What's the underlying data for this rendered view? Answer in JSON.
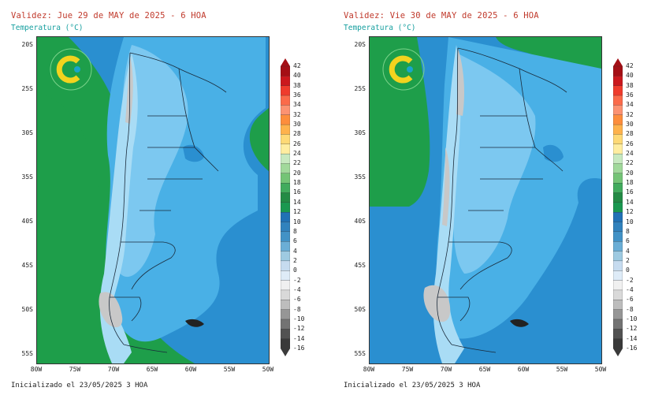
{
  "panels": [
    {
      "id": "left",
      "title": "Validez: Jue 29 de MAY de 2025 - 6 HOA",
      "subtitle": "Temperatura (°C)",
      "footer": "Inicializado el 23/05/2025 3 HOA",
      "lat_labels": [
        "20S",
        "25S",
        "30S",
        "35S",
        "40S",
        "45S",
        "50S",
        "55S"
      ],
      "lon_labels": [
        "80W",
        "75W",
        "70W",
        "65W",
        "60W",
        "55W",
        "50W"
      ]
    },
    {
      "id": "right",
      "title": "Validez: Vie 30 de MAY de 2025 - 6 HOA",
      "subtitle": "Temperatura (°C)",
      "footer": "Inicializado el 23/05/2025 3 HOA",
      "lat_labels": [
        "20S",
        "25S",
        "30S",
        "35S",
        "40S",
        "45S",
        "50S",
        "55S"
      ],
      "lon_labels": [
        "80W",
        "75W",
        "70W",
        "65W",
        "60W",
        "55W",
        "50W"
      ]
    }
  ],
  "colorbar": {
    "labels": [
      "42",
      "40",
      "38",
      "36",
      "34",
      "32",
      "30",
      "28",
      "26",
      "24",
      "22",
      "20",
      "18",
      "16",
      "14",
      "12",
      "10",
      "8",
      "6",
      "4",
      "2",
      "0",
      "-2",
      "-4",
      "-6",
      "-8",
      "-10",
      "-12",
      "-14",
      "-16"
    ],
    "colors": [
      "#a50f15",
      "#cb181d",
      "#ef3b2c",
      "#fb6a4a",
      "#fc9272",
      "#fd8d3c",
      "#feb24c",
      "#fed976",
      "#ffeda0",
      "#c7e9c0",
      "#a1d99b",
      "#74c476",
      "#41ab5d",
      "#238b45",
      "#1a9850",
      "#2171b5",
      "#3182bd",
      "#4292c6",
      "#6baed6",
      "#9ecae1",
      "#c6dbef",
      "#deebf7",
      "#f0f0f0",
      "#d9d9d9",
      "#bdbdbd",
      "#969696",
      "#737373",
      "#525252",
      "#3a3a3a"
    ]
  },
  "map_colors": {
    "ocean_green": "#1e9e4a",
    "ocean_mid": "#2a8fd0",
    "ocean_light": "#49b0e6",
    "land_light": "#7cc8f0",
    "land_pale": "#a9dcf5",
    "snow": "#c8c8c8"
  }
}
